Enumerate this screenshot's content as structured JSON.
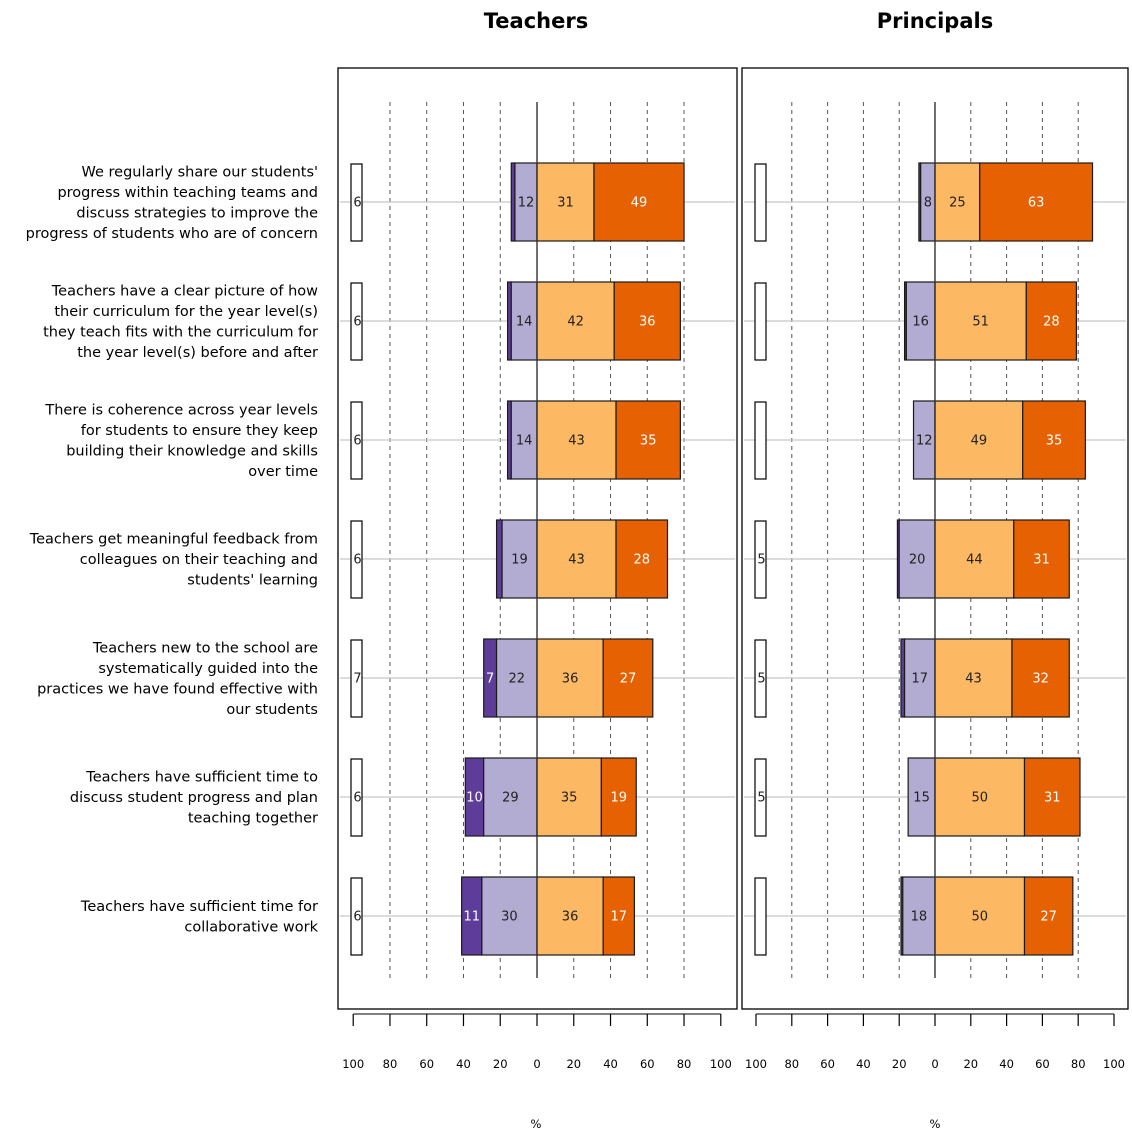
{
  "chart_data": {
    "type": "bar",
    "subtype": "diverging-stacked-bar",
    "panels": [
      "Teachers",
      "Principals"
    ],
    "categories": [
      "We regularly share our students' progress within teaching teams and discuss strategies to improve the progress of students who are of concern",
      "Teachers have a clear picture of how their curriculum for the year level(s) they teach fits with the curriculum for the year level(s) before and after",
      "There is coherence across year levels for students to ensure they keep building their knowledge and skills over time",
      "Teachers get meaningful feedback from colleagues on their teaching and students' learning",
      "Teachers new to the school are systematically guided into the practices we have found effective with our students",
      "Teachers have sufficient time to discuss student progress and plan teaching together",
      "Teachers have sufficient time for collaborative work"
    ],
    "category_lines": [
      [
        "We regularly share our students'",
        "progress within teaching teams and",
        "discuss strategies to improve the",
        "progress of students who are of concern"
      ],
      [
        "Teachers have a clear picture of how",
        "their curriculum for the year level(s)",
        "they teach fits with the curriculum for",
        "the year level(s) before and after"
      ],
      [
        "There is coherence across year levels",
        "for students to ensure they keep",
        "building their knowledge and skills",
        "over time"
      ],
      [
        "Teachers get meaningful feedback from",
        "colleagues on their teaching and",
        "students' learning"
      ],
      [
        "Teachers new to the school are",
        "systematically guided into the",
        "practices we have found effective with",
        "our students"
      ],
      [
        "Teachers have sufficient time to",
        "discuss student progress and plan",
        "teaching together"
      ],
      [
        "Teachers have sufficient time for",
        "collaborative work"
      ]
    ],
    "series_colors": {
      "neutral": "#ffffff",
      "strongly_disagree": "#5e3c99",
      "disagree": "#b2abd2",
      "agree": "#fdb863",
      "strongly_agree": "#e66101"
    },
    "series": [
      {
        "panel": "Teachers",
        "neutral": [
          6,
          6,
          6,
          6,
          7,
          6,
          6
        ],
        "strongly_disagree": [
          2,
          2,
          2,
          3,
          7,
          10,
          11
        ],
        "disagree": [
          12,
          14,
          14,
          19,
          22,
          29,
          30
        ],
        "agree": [
          31,
          42,
          43,
          43,
          36,
          35,
          36
        ],
        "strongly_agree": [
          49,
          36,
          35,
          28,
          27,
          19,
          17
        ]
      },
      {
        "panel": "Principals",
        "neutral": [
          4,
          4,
          4,
          5,
          5,
          5,
          4
        ],
        "strongly_disagree": [
          1,
          1,
          0,
          1,
          2,
          0,
          1
        ],
        "disagree": [
          8,
          16,
          12,
          20,
          17,
          15,
          18
        ],
        "agree": [
          25,
          51,
          49,
          44,
          43,
          50,
          50
        ],
        "strongly_agree": [
          63,
          28,
          35,
          31,
          32,
          31,
          27
        ]
      }
    ],
    "data_labels": [
      {
        "neutral": [
          "6",
          "6",
          "6",
          "6",
          "7",
          "6",
          "6"
        ],
        "strongly_disagree": [
          "",
          "",
          "",
          "",
          "7",
          "10",
          "11"
        ],
        "disagree": [
          "12",
          "14",
          "14",
          "19",
          "22",
          "29",
          "30"
        ],
        "agree": [
          "31",
          "42",
          "43",
          "43",
          "36",
          "35",
          "36"
        ],
        "strongly_agree": [
          "49",
          "36",
          "35",
          "28",
          "27",
          "19",
          "17"
        ]
      },
      {
        "neutral": [
          "",
          "",
          "",
          "5",
          "5",
          "5",
          ""
        ],
        "strongly_disagree": [
          "",
          "",
          "",
          "",
          "",
          "",
          ""
        ],
        "disagree": [
          "8",
          "16",
          "12",
          "20",
          "17",
          "15",
          "18"
        ],
        "agree": [
          "25",
          "51",
          "49",
          "44",
          "43",
          "50",
          "50"
        ],
        "strongly_agree": [
          "63",
          "28",
          "35",
          "31",
          "32",
          "31",
          "27"
        ]
      }
    ],
    "xlim": [
      -100,
      100
    ],
    "xticks": [
      100,
      80,
      60,
      40,
      20,
      0,
      20,
      40,
      60,
      80,
      100
    ],
    "xlabel": "%",
    "grid": "vertical dashed at every 20"
  }
}
